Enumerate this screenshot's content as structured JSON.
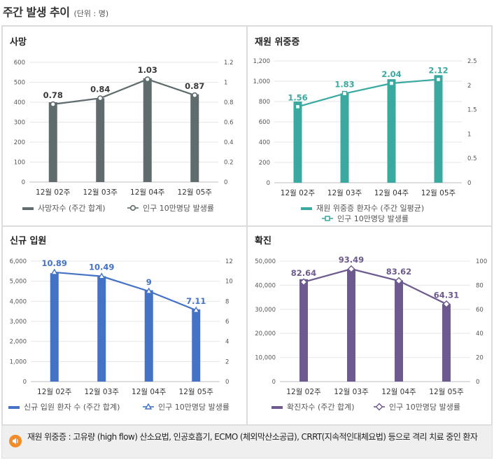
{
  "page": {
    "title": "주간 발생 추이",
    "unit": "(단위 : 명)",
    "footnote": "재원 위중증 : 고유량 (high flow) 산소요법, 인공호흡기, ECMO (체외막산소공급), CRRT(지속적인대체요법) 등으로 격리 치료 중인 환자"
  },
  "chart_data": [
    {
      "type": "bar",
      "title": "사망",
      "color": "#5f6b6d",
      "categories": [
        "12월 02주",
        "12월 03주",
        "12월 04주",
        "12월 05주"
      ],
      "series": [
        {
          "name": "사망자수 (주간 합계)",
          "kind": "bar",
          "axis": "left",
          "values": [
            400,
            420,
            520,
            440
          ]
        },
        {
          "name": "인구 10만명당 발생률",
          "kind": "line",
          "axis": "right",
          "marker": "circle",
          "values": [
            0.78,
            0.84,
            1.03,
            0.87
          ],
          "labels": [
            "0.78",
            "0.84",
            "1.03",
            "0.87"
          ]
        }
      ],
      "left_axis": {
        "min": 0,
        "max": 600,
        "ticks": [
          "0",
          "100",
          "200",
          "300",
          "400",
          "500",
          "600"
        ]
      },
      "right_axis": {
        "min": 0,
        "max": 1.2,
        "ticks": [
          "0",
          "0.2",
          "0.4",
          "0.6",
          "0.8",
          "1",
          "1.2"
        ]
      }
    },
    {
      "type": "bar",
      "title": "재원 위중증",
      "color": "#3aa99f",
      "categories": [
        "12월 02주",
        "12월 03주",
        "12월 04주",
        "12월 05주"
      ],
      "series": [
        {
          "name": "재원 위중증 환자수 (주간 일평균)",
          "kind": "bar",
          "axis": "left",
          "values": [
            800,
            880,
            1020,
            1060
          ]
        },
        {
          "name": "인구 10만명당 발생률",
          "kind": "line",
          "axis": "right",
          "marker": "square",
          "values": [
            1.56,
            1.83,
            2.04,
            2.12
          ],
          "labels": [
            "1.56",
            "1.83",
            "2.04",
            "2.12"
          ]
        }
      ],
      "left_axis": {
        "min": 0,
        "max": 1200,
        "ticks": [
          "0",
          "200",
          "400",
          "600",
          "800",
          "1,000",
          "1,200"
        ]
      },
      "right_axis": {
        "min": 0,
        "max": 2.5,
        "ticks": [
          "0",
          "0.5",
          "1",
          "1.5",
          "2",
          "2.5"
        ]
      }
    },
    {
      "type": "bar",
      "title": "신규 입원",
      "color": "#4472c4",
      "categories": [
        "12월 02주",
        "12월 03주",
        "12월 04주",
        "12월 05주"
      ],
      "series": [
        {
          "name": "신규 입원 환자 수 (주간 합계)",
          "kind": "bar",
          "axis": "left",
          "values": [
            5400,
            5250,
            4550,
            3600
          ]
        },
        {
          "name": "인구 10만명당 발생률",
          "kind": "line",
          "axis": "right",
          "marker": "triangle",
          "values": [
            10.89,
            10.49,
            9,
            7.11
          ],
          "labels": [
            "10.89",
            "10.49",
            "9",
            "7.11"
          ]
        }
      ],
      "left_axis": {
        "min": 0,
        "max": 6000,
        "ticks": [
          "0",
          "1,000",
          "2,000",
          "3,000",
          "4,000",
          "5,000",
          "6,000"
        ]
      },
      "right_axis": {
        "min": 0,
        "max": 12,
        "ticks": [
          "0",
          "2",
          "4",
          "6",
          "8",
          "10",
          "12"
        ]
      }
    },
    {
      "type": "bar",
      "title": "확진",
      "color": "#6d5a8e",
      "categories": [
        "12월 02주",
        "12월 03주",
        "12월 04주",
        "12월 05주"
      ],
      "series": [
        {
          "name": "확진자수 (주간 합계)",
          "kind": "bar",
          "axis": "left",
          "values": [
            42500,
            46700,
            42000,
            32200
          ]
        },
        {
          "name": "인구 10만명당 발생률",
          "kind": "line",
          "axis": "right",
          "marker": "diamond",
          "values": [
            82.64,
            93.49,
            83.62,
            64.31
          ],
          "labels": [
            "82.64",
            "93.49",
            "83.62",
            "64.31"
          ]
        }
      ],
      "left_axis": {
        "min": 0,
        "max": 50000,
        "ticks": [
          "0",
          "10,000",
          "20,000",
          "30,000",
          "40,000",
          "50,000"
        ]
      },
      "right_axis": {
        "min": 0,
        "max": 100,
        "ticks": [
          "0",
          "20",
          "40",
          "60",
          "80",
          "100"
        ]
      }
    }
  ]
}
